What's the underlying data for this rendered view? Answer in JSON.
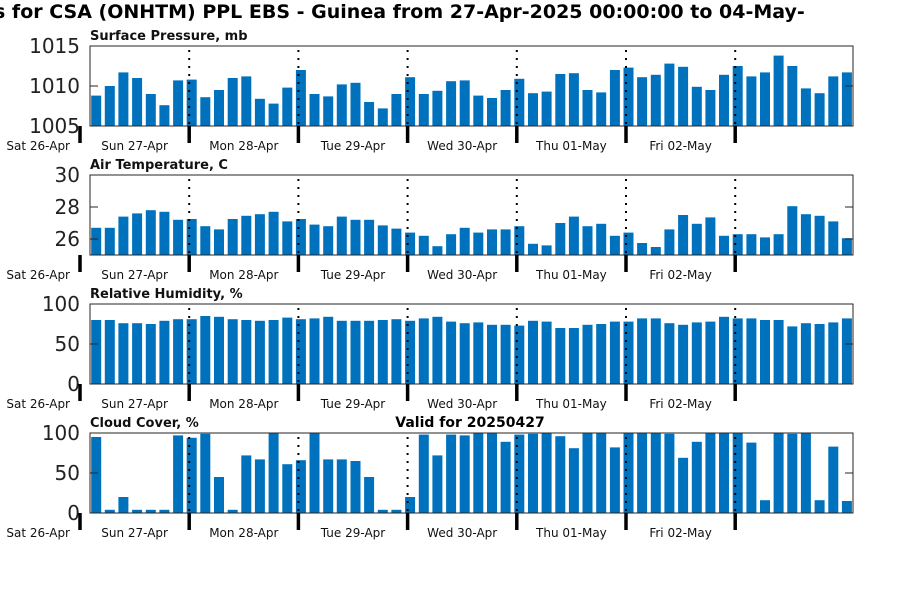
{
  "title": "s for CSA (ONHTM) PPL EBS  - Guinea from 27-Apr-2025 00:00:00 to 04-May-",
  "subtitle": "Valid for 20250427",
  "colors": {
    "bar": "#0072bd",
    "axis": "#262626"
  },
  "day_labels": [
    "Sat 26-Apr",
    "Sun 27-Apr",
    "Mon 28-Apr",
    "Tue 29-Apr",
    "Wed 30-Apr",
    "Thu 01-May",
    "Fri 02-May"
  ],
  "chart_data": [
    {
      "type": "bar",
      "ylabel": "Surface Pressure, mb",
      "ylim": [
        1005,
        1015
      ],
      "yticks": [
        "1005",
        "1010",
        "1015"
      ],
      "x_unit": "hours from 27-Apr 00:00",
      "x": [
        3,
        6,
        9,
        12,
        15,
        18,
        21,
        24,
        27,
        30,
        33,
        36,
        39,
        42,
        45,
        48,
        51,
        54,
        57,
        60,
        63,
        66,
        69,
        72,
        75,
        78,
        81,
        84,
        87,
        90,
        93,
        96,
        99,
        102,
        105,
        108,
        111,
        114,
        117,
        120,
        123,
        126,
        129,
        132,
        135,
        138,
        141,
        144,
        147,
        150,
        153,
        156,
        159,
        162,
        165,
        168
      ],
      "values": [
        1008.8,
        1010.0,
        1011.7,
        1011.0,
        1009.0,
        1007.6,
        1010.7,
        1010.8,
        1008.6,
        1009.5,
        1011.0,
        1011.2,
        1008.4,
        1007.8,
        1009.8,
        1012.0,
        1009.0,
        1008.7,
        1010.2,
        1010.4,
        1008.0,
        1007.2,
        1009.0,
        1011.1,
        1009.0,
        1009.4,
        1010.6,
        1010.7,
        1008.8,
        1008.5,
        1009.5,
        1010.9,
        1009.1,
        1009.3,
        1011.5,
        1011.6,
        1009.5,
        1009.2,
        1012.0,
        1012.3,
        1011.1,
        1011.4,
        1012.8,
        1012.4,
        1009.9,
        1009.5,
        1011.4,
        1012.5,
        1011.2,
        1011.7,
        1013.8,
        1012.5,
        1009.7,
        1009.1,
        1011.2,
        1011.7
      ]
    },
    {
      "type": "bar",
      "ylabel": "Air Temperature, C",
      "ylim": [
        25,
        30
      ],
      "yticks": [
        "26",
        "28",
        "30"
      ],
      "x_unit": "hours from 27-Apr 00:00",
      "x": [
        3,
        6,
        9,
        12,
        15,
        18,
        21,
        24,
        27,
        30,
        33,
        36,
        39,
        42,
        45,
        48,
        51,
        54,
        57,
        60,
        63,
        66,
        69,
        72,
        75,
        78,
        81,
        84,
        87,
        90,
        93,
        96,
        99,
        102,
        105,
        108,
        111,
        114,
        117,
        120,
        123,
        126,
        129,
        132,
        135,
        138,
        141,
        144,
        147,
        150,
        153,
        156,
        159,
        162,
        165,
        168
      ],
      "values": [
        26.7,
        26.7,
        27.4,
        27.6,
        27.8,
        27.7,
        27.2,
        27.25,
        26.8,
        26.6,
        27.25,
        27.45,
        27.55,
        27.7,
        27.1,
        27.25,
        26.9,
        26.8,
        27.4,
        27.2,
        27.2,
        26.85,
        26.65,
        26.4,
        26.2,
        25.55,
        26.3,
        26.7,
        26.4,
        26.6,
        26.6,
        26.8,
        25.7,
        25.6,
        27.0,
        27.4,
        26.8,
        26.95,
        26.2,
        26.4,
        25.75,
        25.5,
        26.6,
        27.5,
        26.95,
        27.35,
        26.2,
        26.3,
        26.3,
        26.1,
        26.3,
        28.05,
        27.55,
        27.45,
        27.1,
        26.05
      ]
    },
    {
      "type": "bar",
      "ylabel": "Relative Humidity, %",
      "ylim": [
        0,
        100
      ],
      "yticks": [
        "0",
        "50",
        "100"
      ],
      "x_unit": "hours from 27-Apr 00:00",
      "x": [
        3,
        6,
        9,
        12,
        15,
        18,
        21,
        24,
        27,
        30,
        33,
        36,
        39,
        42,
        45,
        48,
        51,
        54,
        57,
        60,
        63,
        66,
        69,
        72,
        75,
        78,
        81,
        84,
        87,
        90,
        93,
        96,
        99,
        102,
        105,
        108,
        111,
        114,
        117,
        120,
        123,
        126,
        129,
        132,
        135,
        138,
        141,
        144,
        147,
        150,
        153,
        156,
        159,
        162,
        165,
        168
      ],
      "values": [
        80,
        80,
        76,
        76,
        75,
        79,
        81,
        81,
        85,
        84,
        81,
        80,
        79,
        80,
        83,
        81,
        82,
        84,
        79,
        79,
        79,
        80,
        81,
        79,
        82,
        84,
        78,
        76,
        77,
        74,
        74,
        73,
        79,
        78,
        70,
        70,
        74,
        75,
        78,
        78,
        82,
        82,
        76,
        74,
        77,
        78,
        84,
        82,
        82,
        80,
        80,
        72,
        76,
        75,
        77,
        82
      ]
    },
    {
      "type": "bar",
      "ylabel": "Cloud Cover, %",
      "ylim": [
        0,
        100
      ],
      "yticks": [
        "0",
        "50",
        "100"
      ],
      "x_unit": "hours from 27-Apr 00:00",
      "x": [
        3,
        6,
        9,
        12,
        15,
        18,
        21,
        24,
        27,
        30,
        33,
        36,
        39,
        42,
        45,
        48,
        51,
        54,
        57,
        60,
        63,
        66,
        69,
        72,
        75,
        78,
        81,
        84,
        87,
        90,
        93,
        96,
        99,
        102,
        105,
        108,
        111,
        114,
        117,
        120,
        123,
        126,
        129,
        132,
        135,
        138,
        141,
        144,
        147,
        150,
        153,
        156,
        159,
        162,
        165,
        168
      ],
      "values": [
        95,
        4,
        20,
        4,
        4,
        4,
        97,
        94,
        99,
        45,
        4,
        72,
        67,
        100,
        61,
        66,
        100,
        67,
        67,
        65,
        45,
        4,
        4,
        20,
        98,
        72,
        98,
        97,
        100,
        100,
        89,
        98,
        99,
        100,
        96,
        81,
        100,
        100,
        82,
        100,
        100,
        100,
        99,
        69,
        89,
        100,
        100,
        100,
        88,
        16,
        100,
        99,
        100,
        16,
        83,
        15
      ]
    }
  ]
}
